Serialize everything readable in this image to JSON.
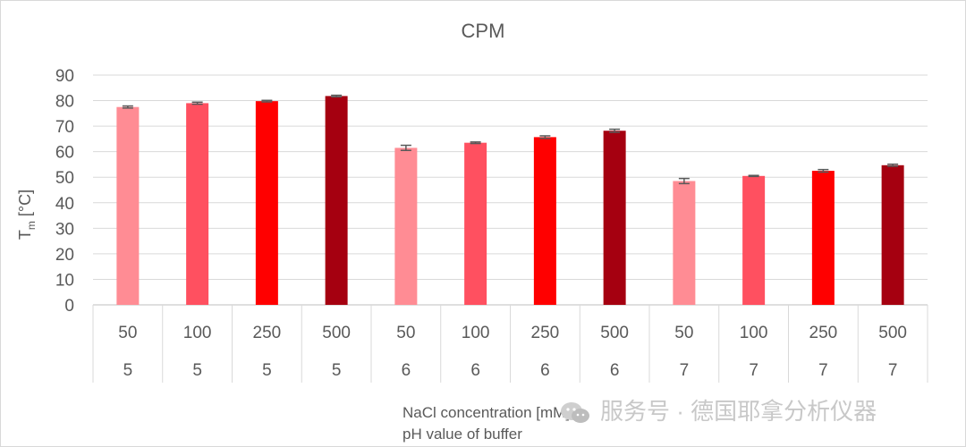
{
  "chart_data": {
    "type": "bar",
    "title": "CPM",
    "ylabel_main": "T",
    "ylabel_sub": "m",
    "ylabel_unit": "[°C]",
    "xlabel_levels": [
      "NaCl concentration [mM]",
      "pH value of buffer"
    ],
    "ylim": [
      0,
      90
    ],
    "yticks": [
      0,
      10,
      20,
      30,
      40,
      50,
      60,
      70,
      80,
      90
    ],
    "grid": true,
    "categories": [
      {
        "nacl": "50",
        "ph": "5"
      },
      {
        "nacl": "100",
        "ph": "5"
      },
      {
        "nacl": "250",
        "ph": "5"
      },
      {
        "nacl": "500",
        "ph": "5"
      },
      {
        "nacl": "50",
        "ph": "6"
      },
      {
        "nacl": "100",
        "ph": "6"
      },
      {
        "nacl": "250",
        "ph": "6"
      },
      {
        "nacl": "500",
        "ph": "6"
      },
      {
        "nacl": "50",
        "ph": "7"
      },
      {
        "nacl": "100",
        "ph": "7"
      },
      {
        "nacl": "250",
        "ph": "7"
      },
      {
        "nacl": "500",
        "ph": "7"
      }
    ],
    "values": [
      77.5,
      79.0,
      79.8,
      81.8,
      61.5,
      63.5,
      65.7,
      68.2,
      48.5,
      50.5,
      52.5,
      54.7
    ],
    "errors": [
      0.4,
      0.4,
      0.3,
      0.3,
      1.0,
      0.3,
      0.5,
      0.6,
      1.0,
      0.2,
      0.5,
      0.4
    ],
    "colors": {
      "50": "#ff8c94",
      "100": "#ff5060",
      "250": "#ff0000",
      "500": "#a50010"
    },
    "error_color": "#595959"
  },
  "watermark": {
    "text": "服务号 · 德国耶拿分析仪器",
    "icon": "wechat-icon"
  }
}
